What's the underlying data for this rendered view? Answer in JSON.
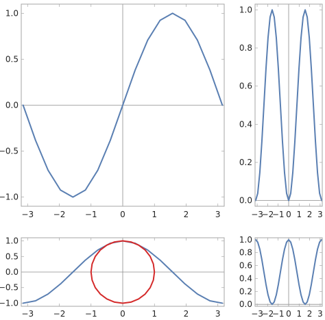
{
  "chart_data": [
    {
      "id": "top-left",
      "type": "line",
      "title": "",
      "xlabel": "",
      "ylabel": "",
      "xlim": [
        -3.2,
        3.2
      ],
      "ylim": [
        -1.1,
        1.1
      ],
      "xticks": [
        -3,
        -2,
        -1,
        0,
        1,
        2,
        3
      ],
      "xtick_labels": [
        "−3",
        "−2",
        "−1",
        "0",
        "1",
        "2",
        "3"
      ],
      "yticks": [
        -1.0,
        -0.5,
        0.0,
        0.5,
        1.0
      ],
      "ytick_labels": [
        "−1.0",
        "−0.5",
        "0.0",
        "0.5",
        "1.0"
      ],
      "grid": false,
      "series": [
        {
          "color": "#5a7fb2",
          "x": [
            -3.1416,
            -2.7489,
            -2.3562,
            -1.9635,
            -1.5708,
            -1.1781,
            -0.7854,
            -0.3927,
            0.0,
            0.3927,
            0.7854,
            1.1781,
            1.5708,
            1.9635,
            2.3562,
            2.7489,
            3.1416
          ],
          "y": [
            0.0,
            -0.383,
            -0.707,
            -0.924,
            -1.0,
            -0.924,
            -0.707,
            -0.383,
            0.0,
            0.383,
            0.707,
            0.924,
            1.0,
            0.924,
            0.707,
            0.383,
            0.0
          ]
        }
      ]
    },
    {
      "id": "top-right",
      "type": "line",
      "title": "",
      "xlabel": "",
      "ylabel": "",
      "xlim": [
        -3.2,
        3.2
      ],
      "ylim": [
        -0.03,
        1.03
      ],
      "xticks": [
        -3,
        -2,
        -1,
        0,
        1,
        2,
        3
      ],
      "xtick_labels": [
        "−3",
        "−2",
        "−1",
        "0",
        "1",
        "2",
        "3"
      ],
      "yticks": [
        0.0,
        0.2,
        0.4,
        0.6,
        0.8,
        1.0
      ],
      "ytick_labels": [
        "0.0",
        "0.2",
        "0.4",
        "0.6",
        "0.8",
        "1.0"
      ],
      "grid": false,
      "series": [
        {
          "color": "#5a7fb2",
          "x": [
            -3.1416,
            -2.9452,
            -2.7489,
            -2.5525,
            -2.3562,
            -2.1598,
            -1.9635,
            -1.7671,
            -1.5708,
            -1.3744,
            -1.1781,
            -0.9817,
            -0.7854,
            -0.589,
            -0.3927,
            -0.1963,
            0.0,
            0.1963,
            0.3927,
            0.589,
            0.7854,
            0.9817,
            1.1781,
            1.3744,
            1.5708,
            1.7671,
            1.9635,
            2.1598,
            2.3562,
            2.5525,
            2.7489,
            2.9452,
            3.1416
          ],
          "y": [
            0.0,
            0.038,
            0.146,
            0.309,
            0.5,
            0.691,
            0.854,
            0.962,
            1.0,
            0.962,
            0.854,
            0.691,
            0.5,
            0.309,
            0.146,
            0.038,
            0.0,
            0.038,
            0.146,
            0.309,
            0.5,
            0.691,
            0.854,
            0.962,
            1.0,
            0.962,
            0.854,
            0.691,
            0.5,
            0.309,
            0.146,
            0.038,
            0.0
          ]
        }
      ]
    },
    {
      "id": "bottom-left",
      "type": "line",
      "title": "",
      "xlabel": "",
      "ylabel": "",
      "xlim": [
        -3.2,
        3.2
      ],
      "ylim": [
        -1.1,
        1.1
      ],
      "xticks": [
        -3,
        -2,
        -1,
        0,
        1,
        2,
        3
      ],
      "xtick_labels": [
        "−3",
        "−2",
        "−1",
        "0",
        "1",
        "2",
        "3"
      ],
      "yticks": [
        -1.0,
        -0.5,
        0.0,
        0.5,
        1.0
      ],
      "ytick_labels": [
        "−1.0",
        "−0.5",
        "0.0",
        "0.5",
        "1.0"
      ],
      "grid": false,
      "series": [
        {
          "color": "#5a7fb2",
          "x": [
            -3.1416,
            -2.7489,
            -2.3562,
            -1.9635,
            -1.5708,
            -1.1781,
            -0.7854,
            -0.3927,
            0.0,
            0.3927,
            0.7854,
            1.1781,
            1.5708,
            1.9635,
            2.3562,
            2.7489,
            3.1416
          ],
          "y": [
            -1.0,
            -0.924,
            -0.707,
            -0.383,
            0.0,
            0.383,
            0.707,
            0.924,
            1.0,
            0.924,
            0.707,
            0.383,
            0.0,
            -0.383,
            -0.707,
            -0.924,
            -1.0
          ]
        },
        {
          "color": "#d42a2a",
          "x": [
            1.0,
            0.966,
            0.866,
            0.707,
            0.5,
            0.259,
            0.0,
            -0.259,
            -0.5,
            -0.707,
            -0.866,
            -0.966,
            -1.0,
            -0.966,
            -0.866,
            -0.707,
            -0.5,
            -0.259,
            0.0,
            0.259,
            0.5,
            0.707,
            0.866,
            0.966,
            1.0
          ],
          "y": [
            0.0,
            0.259,
            0.5,
            0.707,
            0.866,
            0.966,
            1.0,
            0.966,
            0.866,
            0.707,
            0.5,
            0.259,
            0.0,
            -0.259,
            -0.5,
            -0.707,
            -0.866,
            -0.966,
            -1.0,
            -0.966,
            -0.866,
            -0.707,
            -0.5,
            -0.259,
            0.0
          ]
        }
      ]
    },
    {
      "id": "bottom-right",
      "type": "line",
      "title": "",
      "xlabel": "",
      "ylabel": "",
      "xlim": [
        -3.2,
        3.2
      ],
      "ylim": [
        -0.03,
        1.03
      ],
      "xticks": [
        -3,
        -2,
        -1,
        0,
        1,
        2,
        3
      ],
      "xtick_labels": [
        "−3",
        "−2",
        "−1",
        "0",
        "1",
        "2",
        "3"
      ],
      "yticks": [
        0.0,
        0.2,
        0.4,
        0.6,
        0.8,
        1.0
      ],
      "ytick_labels": [
        "0.0",
        "0.2",
        "0.4",
        "0.6",
        "0.8",
        "1.0"
      ],
      "grid": false,
      "series": [
        {
          "color": "#5a7fb2",
          "x": [
            -3.1416,
            -2.9452,
            -2.7489,
            -2.5525,
            -2.3562,
            -2.1598,
            -1.9635,
            -1.7671,
            -1.5708,
            -1.3744,
            -1.1781,
            -0.9817,
            -0.7854,
            -0.589,
            -0.3927,
            -0.1963,
            0.0,
            0.1963,
            0.3927,
            0.589,
            0.7854,
            0.9817,
            1.1781,
            1.3744,
            1.5708,
            1.7671,
            1.9635,
            2.1598,
            2.3562,
            2.5525,
            2.7489,
            2.9452,
            3.1416
          ],
          "y": [
            1.0,
            0.962,
            0.854,
            0.691,
            0.5,
            0.309,
            0.146,
            0.038,
            0.0,
            0.038,
            0.146,
            0.309,
            0.5,
            0.691,
            0.854,
            0.962,
            1.0,
            0.962,
            0.854,
            0.691,
            0.5,
            0.309,
            0.146,
            0.038,
            0.0,
            0.038,
            0.146,
            0.309,
            0.5,
            0.691,
            0.854,
            0.962,
            1.0
          ]
        }
      ]
    }
  ]
}
